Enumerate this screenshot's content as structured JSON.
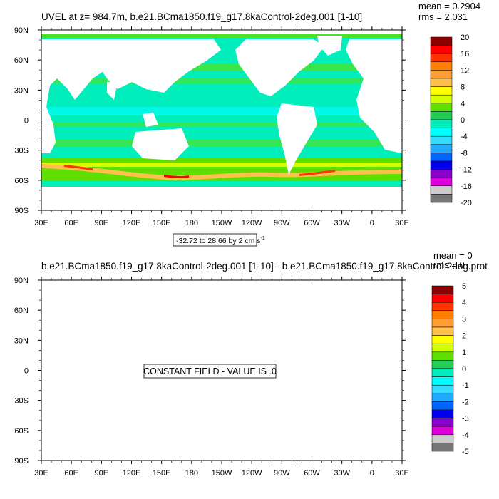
{
  "chart_data": [
    {
      "type": "heatmap",
      "title": "UVEL at z= 984.7m, b.e21.BCma1850.f19_g17.8kaControl-2deg.001 [1-10]",
      "stats": {
        "mean_label": "mean = 0.2904",
        "rms_label": "rms = 2.031"
      },
      "x_ticks": [
        "30E",
        "60E",
        "90E",
        "120E",
        "150E",
        "180",
        "150W",
        "120W",
        "90W",
        "60W",
        "30W",
        "0",
        "30E"
      ],
      "y_ticks": [
        "90N",
        "60N",
        "30N",
        "0",
        "30S",
        "60S",
        "90S"
      ],
      "xlim": [
        30,
        390
      ],
      "ylim": [
        -90,
        90
      ],
      "range_label": "-32.72 to 28.66 by 2 cm s",
      "range_label_sup": "-1",
      "colorbar": {
        "labels": [
          "20",
          "16",
          "12",
          "8",
          "4",
          "0",
          "-4",
          "-8",
          "-12",
          "-16",
          "-20"
        ],
        "colors": [
          "#8b0000",
          "#ff0000",
          "#ff3300",
          "#ff7f00",
          "#ff9f33",
          "#ffbf4c",
          "#ffff00",
          "#d4ff00",
          "#5fdf00",
          "#22cc55",
          "#00eebb",
          "#00ffff",
          "#33ddff",
          "#22aaff",
          "#0066ff",
          "#0000ee",
          "#8800cc",
          "#dd00dd",
          "#cccccc",
          "#777777"
        ]
      },
      "field_description": "zonal current bands; strong eastward flow in the Southern Ocean near 45S-60S"
    },
    {
      "type": "heatmap",
      "title": "b.e21.BCma1850.f19_g17.8kaControl-2deg.001 [1-10] - b.e21.BCma1850.f19_g17.8kaControl-2deg.prot",
      "stats": {
        "mean_label": "mean = 0",
        "rms_label": "rms = 0"
      },
      "x_ticks": [
        "30E",
        "60E",
        "90E",
        "120E",
        "150E",
        "180",
        "150W",
        "120W",
        "90W",
        "60W",
        "30W",
        "0",
        "30E"
      ],
      "y_ticks": [
        "90N",
        "60N",
        "30N",
        "0",
        "30S",
        "60S",
        "90S"
      ],
      "xlim": [
        30,
        390
      ],
      "ylim": [
        -90,
        90
      ],
      "message": "CONSTANT FIELD - VALUE IS .0",
      "colorbar": {
        "labels": [
          "5",
          "4",
          "3",
          "2",
          "1",
          "0",
          "-1",
          "-2",
          "-3",
          "-4",
          "-5"
        ],
        "colors": [
          "#8b0000",
          "#ff0000",
          "#ff3300",
          "#ff7f00",
          "#ff9f33",
          "#ffbf4c",
          "#ffff00",
          "#d4ff00",
          "#5fdf00",
          "#22cc55",
          "#00eebb",
          "#00ffff",
          "#33ddff",
          "#22aaff",
          "#0066ff",
          "#0000ee",
          "#8800cc",
          "#dd00dd",
          "#cccccc",
          "#777777"
        ]
      }
    }
  ]
}
